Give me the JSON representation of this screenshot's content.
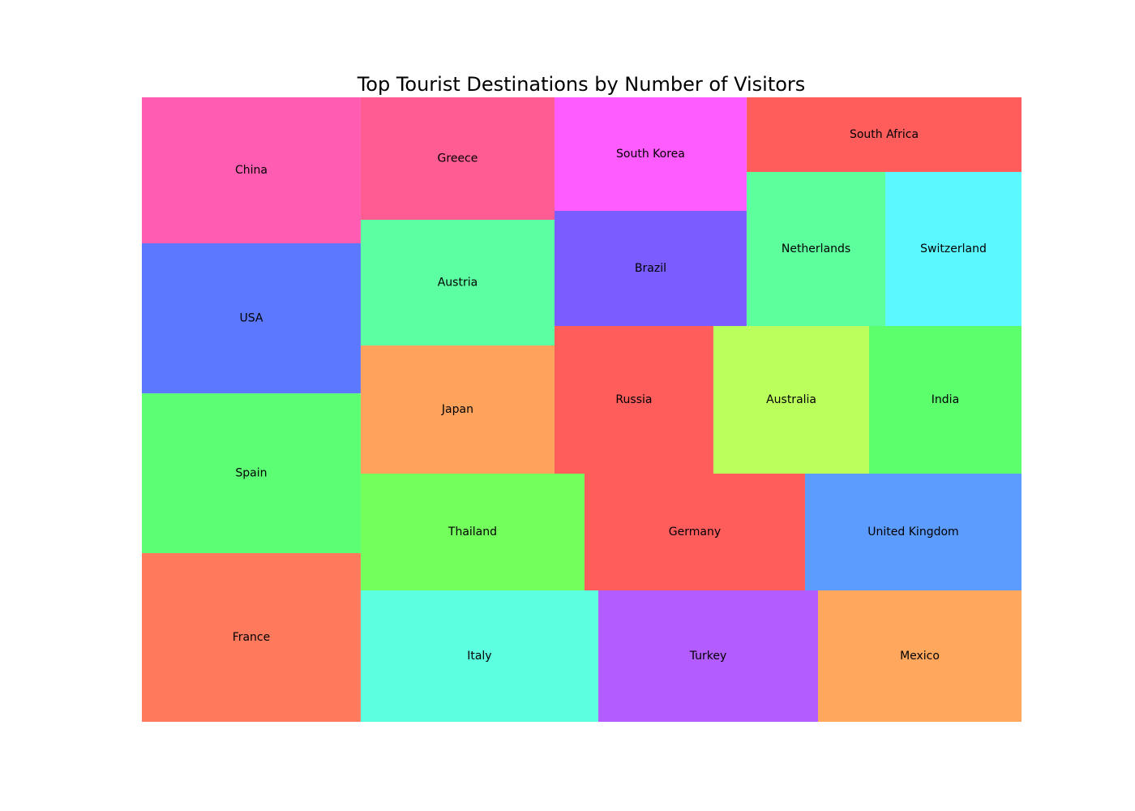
{
  "chart_data": {
    "type": "treemap",
    "title": "Top Tourist Destinations by Number of Visitors",
    "xlabel": "",
    "ylabel": "",
    "grid": false,
    "legend": "none",
    "xlim": [
      0,
      100
    ],
    "ylim": [
      0,
      100
    ],
    "tiles": [
      {
        "label": "France",
        "color": "#ff7a5c",
        "x": 0,
        "y": 0,
        "w": 24.88,
        "h": 27.01
      },
      {
        "label": "Spain",
        "color": "#5cff73",
        "x": 0,
        "y": 27.01,
        "w": 24.88,
        "h": 25.58
      },
      {
        "label": "USA",
        "color": "#5c78ff",
        "x": 0,
        "y": 52.6,
        "w": 24.88,
        "h": 24.03
      },
      {
        "label": "China",
        "color": "#ff5cb2",
        "x": 0,
        "y": 76.62,
        "w": 24.88,
        "h": 23.38
      },
      {
        "label": "Italy",
        "color": "#5cffdf",
        "x": 24.88,
        "y": 0,
        "w": 27.0,
        "h": 21.04
      },
      {
        "label": "Turkey",
        "color": "#b35cff",
        "x": 51.89,
        "y": 0,
        "w": 24.98,
        "h": 21.04
      },
      {
        "label": "Mexico",
        "color": "#ffa75c",
        "x": 76.87,
        "y": 0,
        "w": 23.13,
        "h": 21.04
      },
      {
        "label": "Thailand",
        "color": "#73ff5c",
        "x": 24.88,
        "y": 21.04,
        "w": 25.44,
        "h": 18.7
      },
      {
        "label": "Germany",
        "color": "#ff5c5c",
        "x": 50.32,
        "y": 21.04,
        "w": 25.07,
        "h": 18.7
      },
      {
        "label": "United Kingdom",
        "color": "#5c9cff",
        "x": 75.39,
        "y": 21.04,
        "w": 24.61,
        "h": 18.7
      },
      {
        "label": "Japan",
        "color": "#ffa35c",
        "x": 24.88,
        "y": 39.74,
        "w": 22.03,
        "h": 20.52
      },
      {
        "label": "Austria",
        "color": "#5cffa1",
        "x": 24.88,
        "y": 60.26,
        "w": 22.03,
        "h": 20.13
      },
      {
        "label": "Greece",
        "color": "#ff5c93",
        "x": 24.88,
        "y": 80.39,
        "w": 22.03,
        "h": 19.61
      },
      {
        "label": "Russia",
        "color": "#ff5c5c",
        "x": 46.91,
        "y": 39.74,
        "w": 18.06,
        "h": 23.64
      },
      {
        "label": "Australia",
        "color": "#bbff5c",
        "x": 64.98,
        "y": 39.74,
        "w": 17.7,
        "h": 23.64
      },
      {
        "label": "India",
        "color": "#5cff6c",
        "x": 82.67,
        "y": 39.74,
        "w": 17.33,
        "h": 23.64
      },
      {
        "label": "Brazil",
        "color": "#7a5cff",
        "x": 46.91,
        "y": 63.38,
        "w": 21.84,
        "h": 18.44
      },
      {
        "label": "South Korea",
        "color": "#ff5cff",
        "x": 46.91,
        "y": 81.82,
        "w": 21.84,
        "h": 18.18
      },
      {
        "label": "Netherlands",
        "color": "#5cff9c",
        "x": 68.76,
        "y": 63.38,
        "w": 15.76,
        "h": 24.68
      },
      {
        "label": "Switzerland",
        "color": "#5cf8ff",
        "x": 84.52,
        "y": 63.38,
        "w": 15.48,
        "h": 24.68
      },
      {
        "label": "South Africa",
        "color": "#ff5c5c",
        "x": 68.76,
        "y": 88.05,
        "w": 31.24,
        "h": 11.95
      }
    ]
  }
}
